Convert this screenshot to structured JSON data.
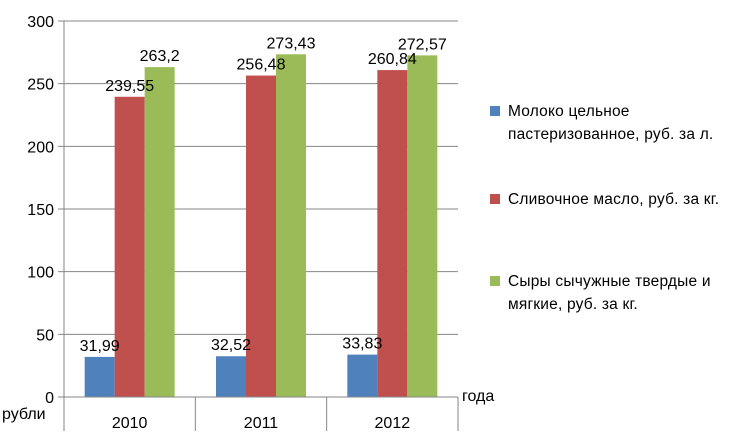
{
  "chart_data": {
    "type": "bar",
    "categories": [
      "2010",
      "2011",
      "2012"
    ],
    "series": [
      {
        "name": "Молоко цельное пастеризованное, руб. за л.",
        "color": "#4f81bd",
        "values": [
          31.99,
          32.52,
          33.83
        ],
        "labels": [
          "31,99",
          "32,52",
          "33,83"
        ]
      },
      {
        "name": "Сливочное масло, руб. за кг.",
        "color": "#c0504d",
        "values": [
          239.55,
          256.48,
          260.84
        ],
        "labels": [
          "239,55",
          "256,48",
          "260,84"
        ]
      },
      {
        "name": "Сыры сычужные твердые и мягкие, руб. за кг.",
        "color": "#9bbb59",
        "values": [
          263.2,
          273.43,
          272.57
        ],
        "labels": [
          "263,2",
          "273,43",
          "272,57"
        ]
      }
    ],
    "yticks": [
      "0",
      "50",
      "100",
      "150",
      "200",
      "250",
      "300"
    ],
    "ylim": [
      0,
      300
    ],
    "xlabel": "года",
    "ylabel": "рубли",
    "grid": true,
    "legend_position": "right"
  }
}
